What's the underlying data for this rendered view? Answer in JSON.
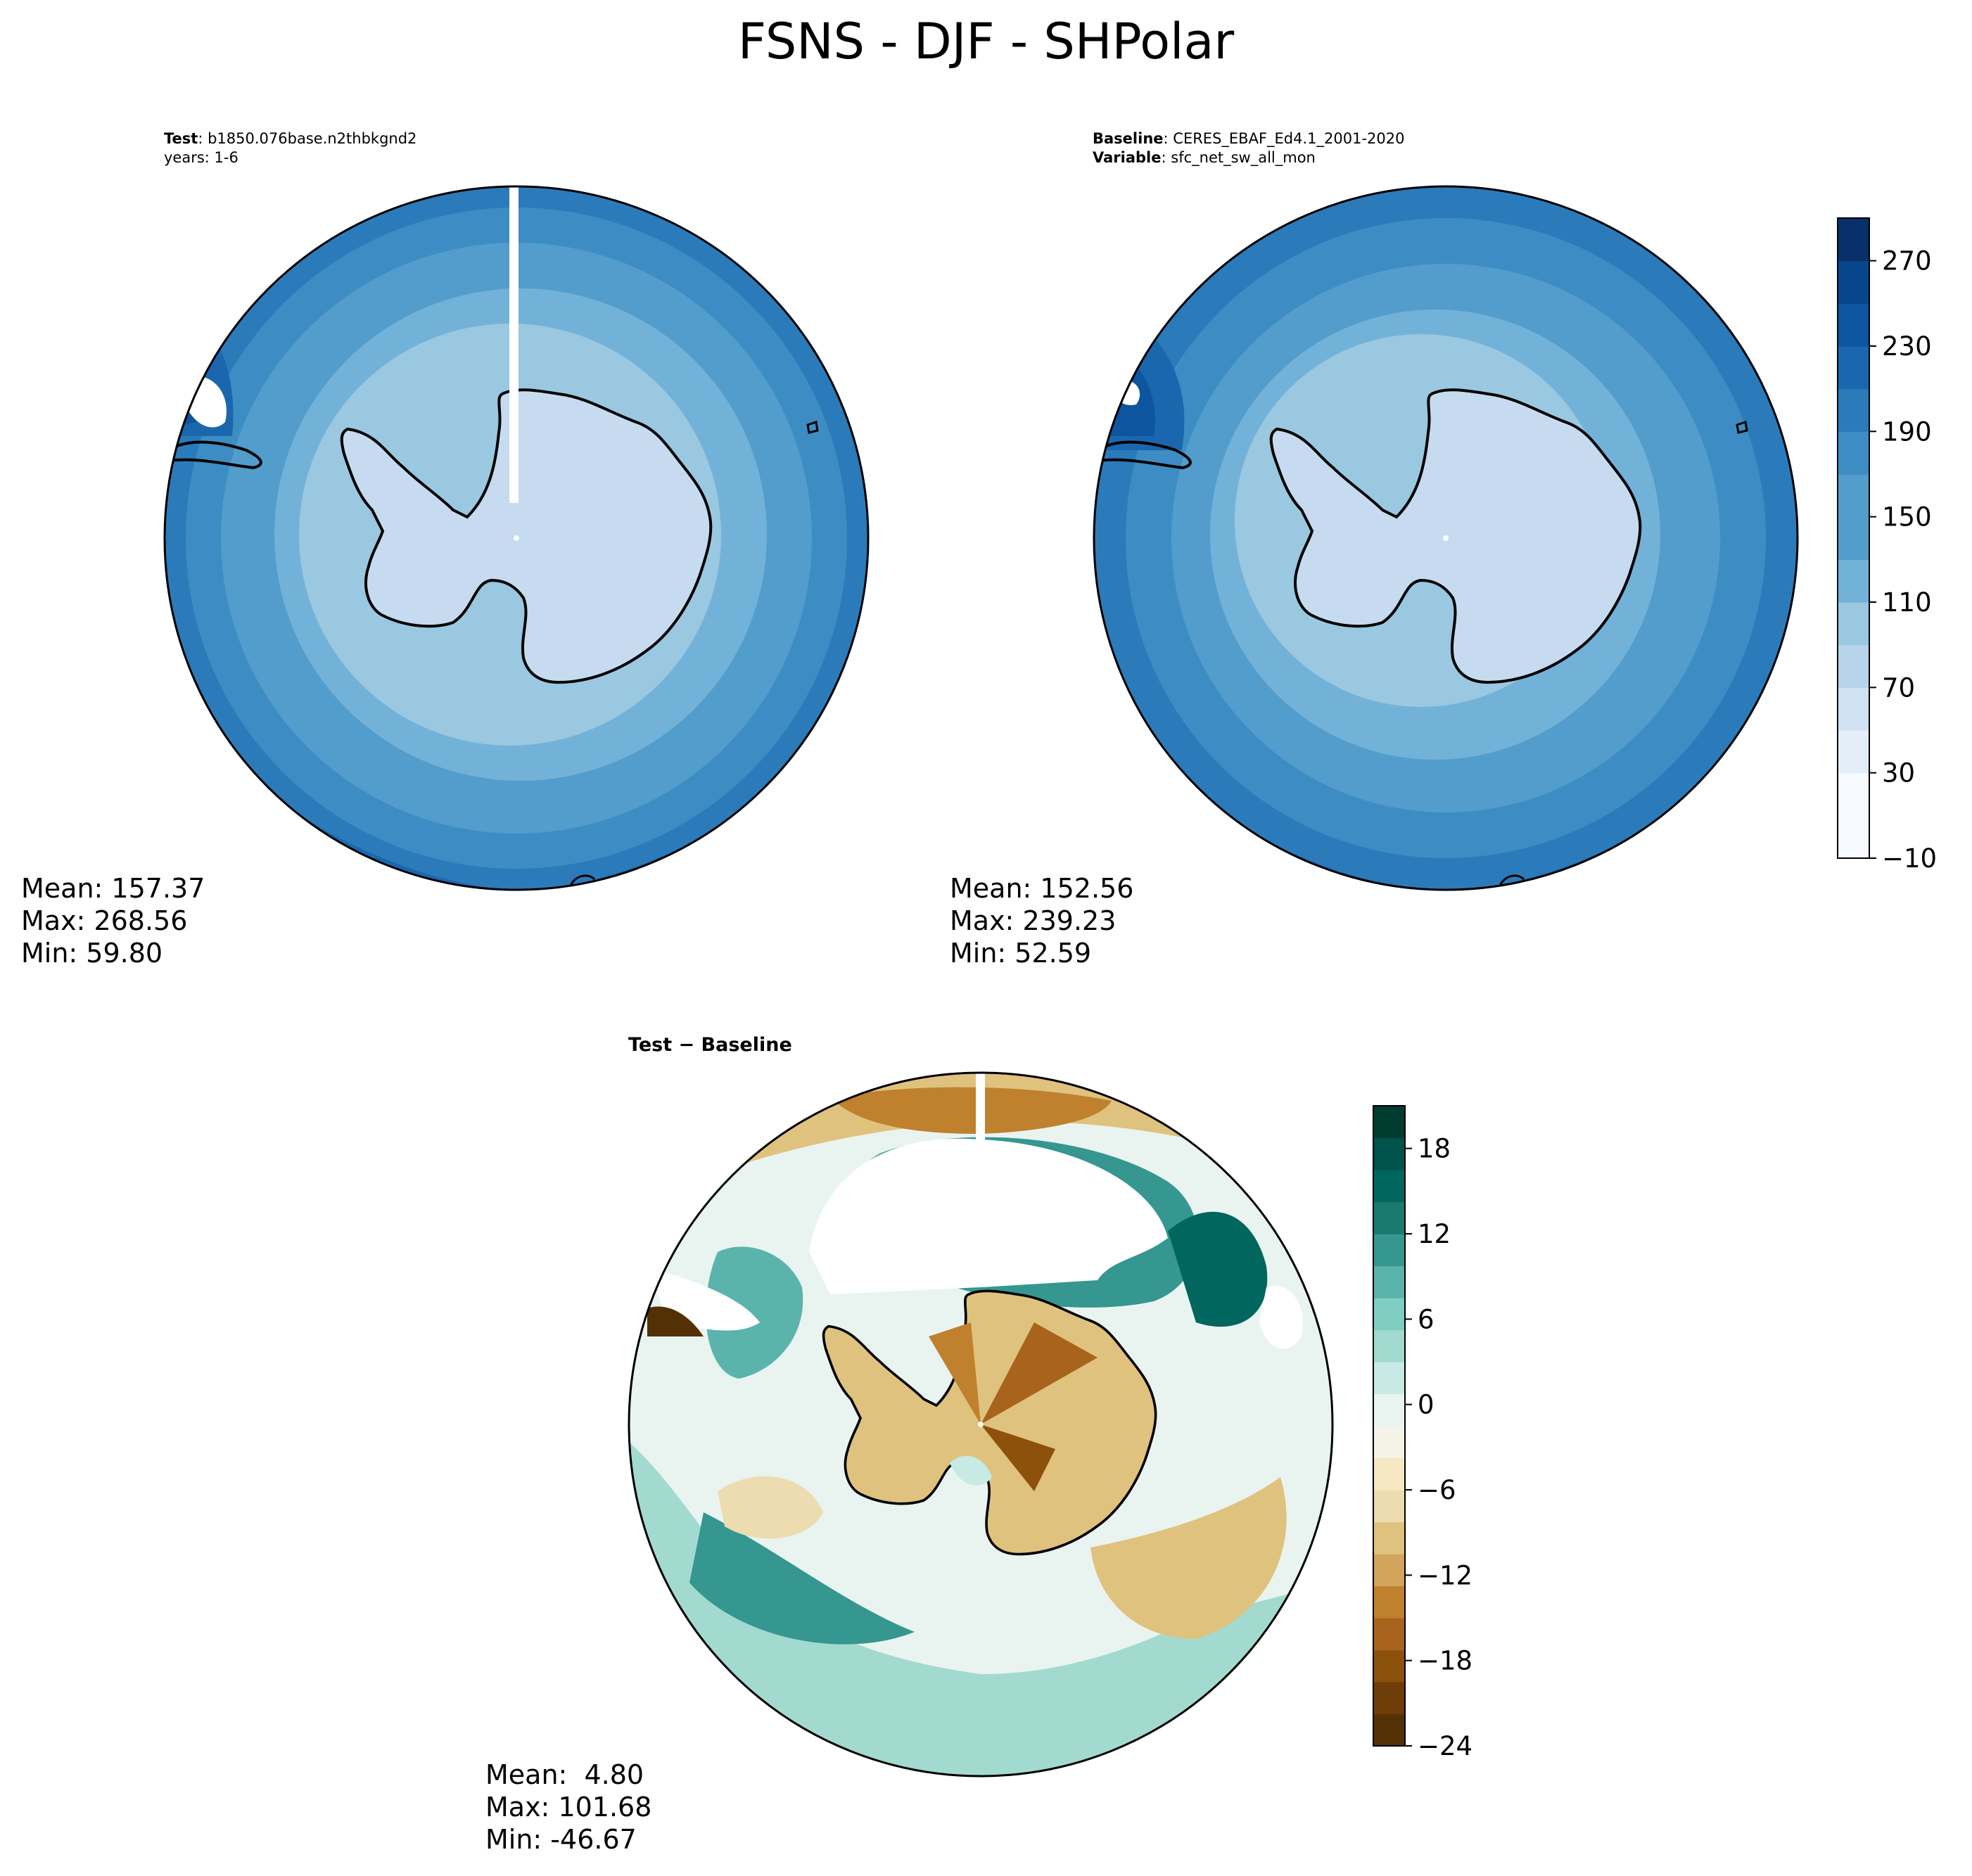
{
  "figure": {
    "title": "FSNS - DJF - SHPolar"
  },
  "chart_data": [
    {
      "type": "heatmap",
      "panel": "test",
      "projection": "south-polar-stereographic",
      "annotation": {
        "label": "Test",
        "value": "b1850.076base.n2thbkgnd2",
        "line2": "years: 1-6"
      },
      "stats": {
        "mean": "Mean: 157.37",
        "max": "Max: 268.56",
        "min": "Min: 59.80"
      },
      "levels": [
        -10,
        10,
        30,
        50,
        70,
        90,
        110,
        130,
        150,
        170,
        190,
        210,
        230,
        250,
        270,
        290
      ]
    },
    {
      "type": "heatmap",
      "panel": "baseline",
      "projection": "south-polar-stereographic",
      "annotation": {
        "label": "Baseline",
        "value": "CERES_EBAF_Ed4.1_2001-2020",
        "label2": "Variable",
        "value2": "sfc_net_sw_all_mon"
      },
      "stats": {
        "mean": "Mean: 152.56",
        "max": "Max: 239.23",
        "min": "Min: 52.59"
      },
      "colorbar": {
        "ticks": [
          "270",
          "230",
          "190",
          "150",
          "110",
          "70",
          "30",
          "−10"
        ],
        "tick_values": [
          270,
          230,
          190,
          150,
          110,
          70,
          30,
          -10
        ],
        "range": [
          -10,
          290
        ]
      }
    },
    {
      "type": "heatmap",
      "panel": "difference",
      "projection": "south-polar-stereographic",
      "title": "Test − Baseline",
      "stats": {
        "mean": "Mean:  4.80",
        "max": "Max: 101.68",
        "min": "Min: -46.67"
      },
      "colorbar": {
        "ticks": [
          "18",
          "12",
          "6",
          "0",
          "−6",
          "−12",
          "−18",
          "−24"
        ],
        "tick_values": [
          18,
          12,
          6,
          0,
          -6,
          -12,
          -18,
          -24
        ],
        "range": [
          -24,
          21
        ]
      }
    }
  ],
  "colors": {
    "blues": [
      "#f7fbff",
      "#e3eef9",
      "#d0e1f2",
      "#b7d4ea",
      "#9ac8e0",
      "#73b2d8",
      "#529dcc",
      "#3d8dc4",
      "#2b7bba",
      "#1b67ae",
      "#0d559f",
      "#08468b",
      "#08306b"
    ],
    "browns": [
      "#543005",
      "#6f3d08",
      "#8c510a",
      "#a8641c",
      "#bf812d",
      "#d3a55c",
      "#dfc27d",
      "#ecdcb0",
      "#f6e8c3",
      "#f5f2e8"
    ],
    "teals": [
      "#e9f4f1",
      "#c7eae5",
      "#a3dad0",
      "#80cdc1",
      "#5ab4ac",
      "#35978f",
      "#1b7a70",
      "#01665e",
      "#00524a",
      "#003c30"
    ],
    "land_fill": "#c6dbef",
    "coast": "#000000"
  }
}
